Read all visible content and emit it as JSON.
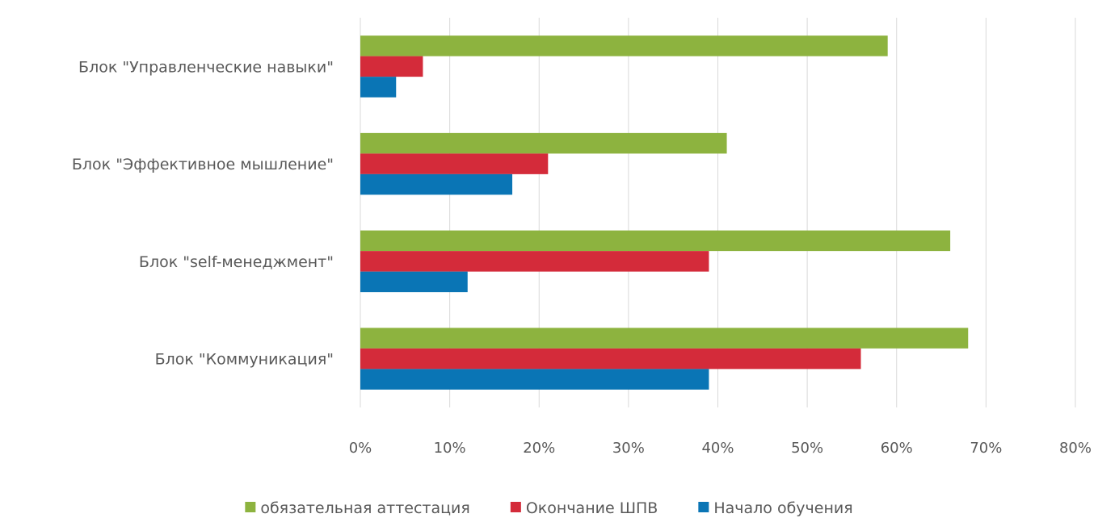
{
  "chart_data": {
    "type": "bar",
    "orientation": "horizontal",
    "categories": [
      "Блок \"Управленческие навыки\"",
      "Блок \"Эффективное мышление\"",
      "Блок \"self-менеджмент\"",
      "Блок \"Коммуникация\""
    ],
    "series": [
      {
        "name": "обязательная аттестация",
        "color": "#8db33f",
        "values": [
          59,
          41,
          66,
          68
        ]
      },
      {
        "name": "Окончание ШПВ",
        "color": "#d42b3a",
        "values": [
          7,
          21,
          39,
          56
        ]
      },
      {
        "name": "Начало обучения",
        "color": "#0a75b5",
        "values": [
          4,
          17,
          12,
          39
        ]
      }
    ],
    "xlim": [
      0,
      80
    ],
    "x_ticks": [
      "0%",
      "10%",
      "20%",
      "30%",
      "40%",
      "50%",
      "60%",
      "70%",
      "80%"
    ],
    "grid": true,
    "legend_position": "bottom"
  }
}
